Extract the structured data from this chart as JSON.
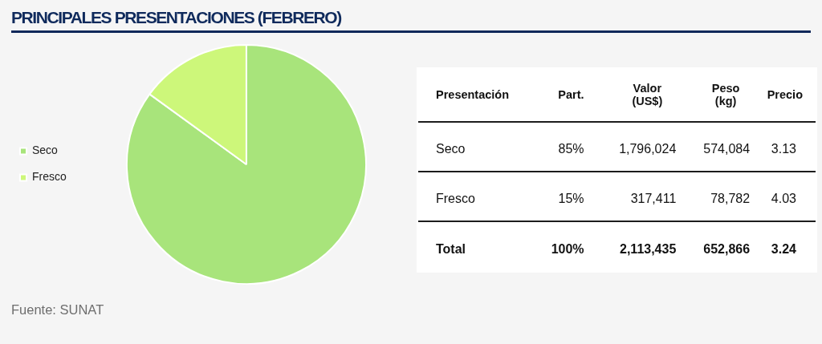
{
  "chart_data": [
    {
      "type": "pie",
      "title": "PRINCIPALES PRESENTACIONES (FEBRERO)",
      "categories": [
        "Seco",
        "Fresco"
      ],
      "values": [
        85,
        15
      ],
      "colors": [
        "#a8e47b",
        "#cdf77a"
      ],
      "legend": "left",
      "annotations": [
        "Fuente: SUNAT"
      ]
    },
    {
      "type": "other",
      "ylabel": "Presentación",
      "categories": [
        "Seco",
        "Fresco",
        "Total"
      ],
      "series": [
        {
          "name": "Part.",
          "values": [
            85,
            15,
            100
          ],
          "value_labels": [
            "85%",
            "15%",
            "100%"
          ]
        },
        {
          "name": "Valor (US$)",
          "values": [
            1796024,
            317411,
            2113435
          ],
          "value_labels": [
            "1,796,024",
            "317,411",
            "2,113,435"
          ]
        },
        {
          "name": "Peso (kg)",
          "values": [
            574084,
            78782,
            652866
          ],
          "value_labels": [
            "574,084",
            "78,782",
            "652,866"
          ]
        },
        {
          "name": "Precio",
          "values": [
            3.13,
            4.03,
            3.24
          ],
          "value_labels": [
            "3.13",
            "4.03",
            "3.24"
          ]
        }
      ]
    }
  ]
}
